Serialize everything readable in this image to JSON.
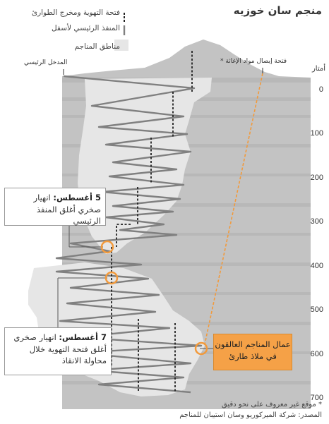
{
  "title": "منجم سان خوزيه",
  "legend": {
    "shaft": "فتحة التهوية ومخرج الطوارئ",
    "ramp": "المنفذ الرئيسي لأسفل",
    "areas": "مناطق المناجم"
  },
  "labels": {
    "main_entrance": "المدخل الرئيسي",
    "supply_shaft": "فتحة إيصال مواد الإغاثة *",
    "depth_unit": "أمتار"
  },
  "depth_ticks": [
    "0",
    "100",
    "200",
    "300",
    "400",
    "500",
    "600",
    "700"
  ],
  "events": {
    "aug5_title": "5 أغسطس:",
    "aug5_text1": "انهيار",
    "aug5_text2": "صخري أغلق المنفذ الرئيسي",
    "aug7_title": "7 أغسطس:",
    "aug7_text1": "انهيار صخري",
    "aug7_text2": "أغلق فتحة التهوية خلال",
    "aug7_text3": "محاولة الانقاذ"
  },
  "trapped": {
    "line1": "عمال المناجم العالقون",
    "line2": "في ملاذ طارئ"
  },
  "footnote": {
    "note": "* موقع غير معروف على نحو دقيق",
    "source": "المصدر: شركة الميركوريو وسان استيبان للمناجم"
  },
  "colors": {
    "mine_area": "#e6e6e6",
    "rock": "#c3c3c3",
    "ramp": "#808080",
    "shaft": "#222222",
    "accent": "#f29a3c"
  }
}
